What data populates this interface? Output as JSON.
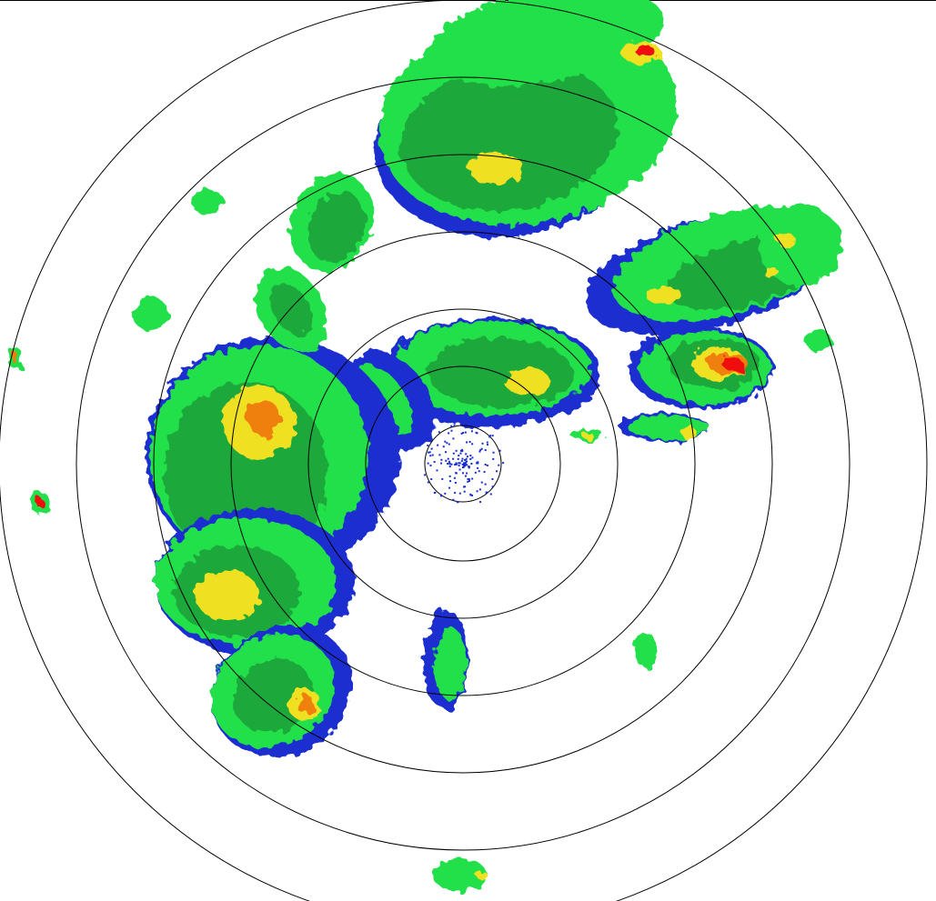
{
  "display": {
    "type": "radar-reflectivity-ppi",
    "range_ring_count": 7,
    "colors": {
      "background": "#ffffff",
      "ring": "#000000",
      "weak": "#1a2fd0",
      "light": "#10e0a0",
      "moderate_light": "#22e04a",
      "moderate": "#1aa83a",
      "heavy": "#f0e020",
      "intense": "#f08010",
      "extreme": "#f01010"
    }
  }
}
